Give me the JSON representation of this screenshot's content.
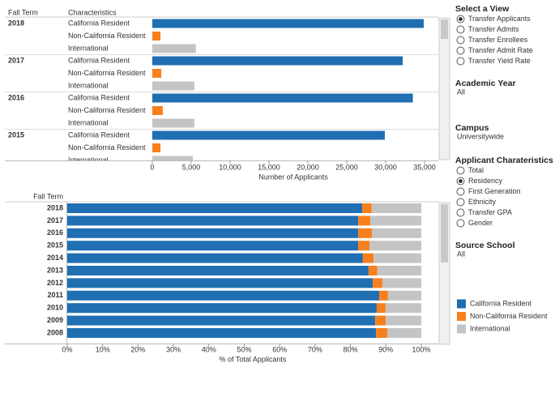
{
  "chart_data": [
    {
      "type": "bar",
      "orientation": "horizontal",
      "row_header": "Fall Term",
      "column_header": "Characteristics",
      "categories": [
        "2018",
        "2017",
        "2016",
        "2015"
      ],
      "series": [
        {
          "name": "California Resident",
          "color": "#1f6fb2",
          "values": [
            34900,
            32200,
            33500,
            29900
          ]
        },
        {
          "name": "Non-California Resident",
          "color": "#f7801d",
          "values": [
            1050,
            1150,
            1350,
            1050
          ]
        },
        {
          "name": "International",
          "color": "#c4c4c4",
          "values": [
            5600,
            5400,
            5400,
            5200
          ]
        }
      ],
      "xlim": [
        0,
        36500
      ],
      "xticks": [
        0,
        {
          "value": 5000,
          "label": "5,000"
        },
        {
          "value": 10000,
          "label": "10,000"
        },
        {
          "value": 15000,
          "label": "15,000"
        },
        {
          "value": 20000,
          "label": "20,000"
        },
        {
          "value": 25000,
          "label": "25,000"
        },
        {
          "value": 30000,
          "label": "30,000"
        },
        {
          "value": 35000,
          "label": "35,000"
        }
      ],
      "x_label": "Number of Applicants"
    },
    {
      "type": "stacked_bar",
      "orientation": "horizontal",
      "row_header": "Fall Term",
      "categories": [
        "2018",
        "2017",
        "2016",
        "2015",
        "2014",
        "2013",
        "2012",
        "2011",
        "2010",
        "2009",
        "2008"
      ],
      "series": [
        {
          "name": "California Resident",
          "color": "#1f6fb2",
          "values": [
            83.3,
            82.2,
            82.2,
            82.2,
            83.5,
            85.1,
            86.3,
            88.1,
            87.4,
            87.0,
            87.2
          ]
        },
        {
          "name": "Non-California Resident",
          "color": "#f7801d",
          "values": [
            2.7,
            3.4,
            3.9,
            3.2,
            3.0,
            2.5,
            2.7,
            2.5,
            2.5,
            3.0,
            3.2
          ]
        },
        {
          "name": "International",
          "color": "#c4c4c4",
          "values": [
            14.0,
            14.4,
            13.9,
            14.6,
            13.5,
            12.4,
            11.0,
            9.4,
            10.1,
            10.0,
            9.6
          ]
        }
      ],
      "xlim": [
        0,
        100
      ],
      "xticks": [
        {
          "value": 0,
          "label": "0%"
        },
        {
          "value": 10,
          "label": "10%"
        },
        {
          "value": 20,
          "label": "20%"
        },
        {
          "value": 30,
          "label": "30%"
        },
        {
          "value": 40,
          "label": "40%"
        },
        {
          "value": 50,
          "label": "50%"
        },
        {
          "value": 60,
          "label": "60%"
        },
        {
          "value": 70,
          "label": "70%"
        },
        {
          "value": 80,
          "label": "80%"
        },
        {
          "value": 90,
          "label": "90%"
        },
        {
          "value": 100,
          "label": "100%"
        }
      ],
      "x_label": "% of Total Applicants"
    }
  ],
  "controls": {
    "view": {
      "title": "Select a View",
      "options": [
        "Transfer Applicants",
        "Transfer Admits",
        "Transfer Enrollees",
        "Transfer Admit Rate",
        "Transfer Yield Rate"
      ],
      "selected": 0
    },
    "academic_year": {
      "title": "Academic Year",
      "value": "All"
    },
    "campus": {
      "title": "Campus",
      "value": "Universitywide"
    },
    "applicant": {
      "title": "Applicant Charateristics",
      "options": [
        "Total",
        "Residency",
        "First Generation",
        "Ethnicity",
        "Transfer GPA",
        "Gender"
      ],
      "selected": 1
    },
    "source_school": {
      "title": "Source School",
      "value": "All"
    }
  }
}
